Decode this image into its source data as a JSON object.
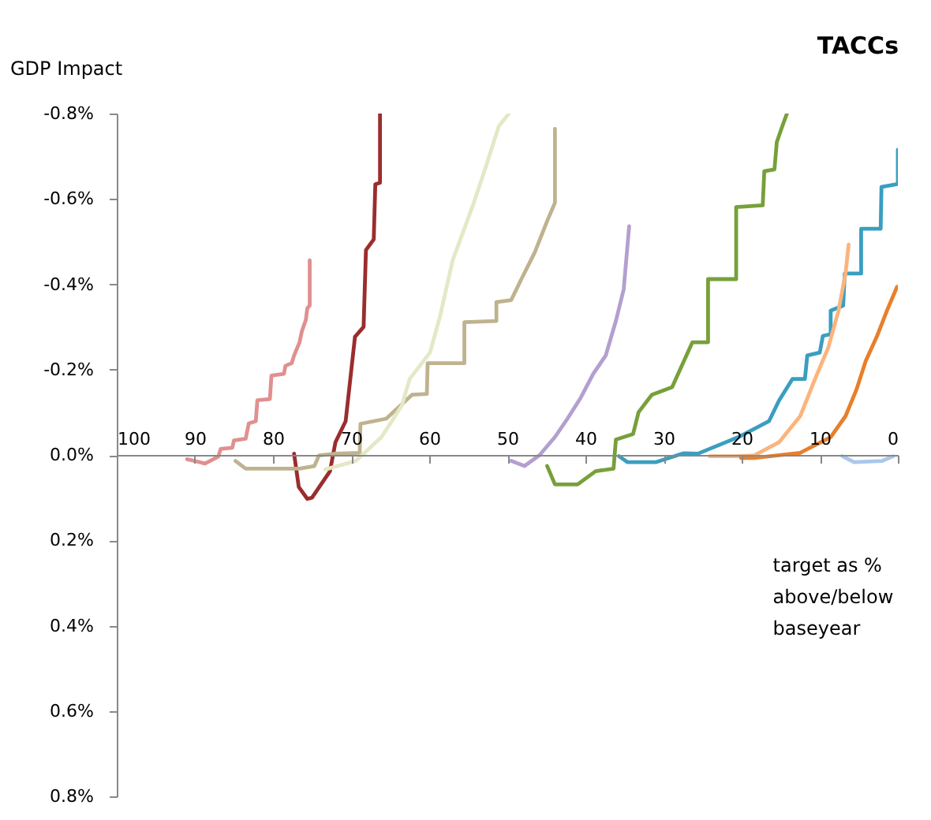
{
  "chart_data": {
    "type": "line",
    "title": "TACCs",
    "ylabel": "GDP Impact",
    "xlim": [
      100,
      0
    ],
    "xticks": [
      100,
      90,
      80,
      70,
      60,
      50,
      40,
      30,
      20,
      10,
      0
    ],
    "ylim": [
      0.8,
      -0.8
    ],
    "yticks": [
      {
        "value": -0.8,
        "label": "-0.8%"
      },
      {
        "value": -0.6,
        "label": "-0.6%"
      },
      {
        "value": -0.4,
        "label": "-0.4%"
      },
      {
        "value": -0.2,
        "label": "-0.2%"
      },
      {
        "value": 0,
        "label": "0.0%"
      },
      {
        "value": 0.2,
        "label": "0.2%"
      },
      {
        "value": 0.4,
        "label": "0.4%"
      },
      {
        "value": 0.6,
        "label": "0.6%"
      },
      {
        "value": 0.8,
        "label": "0.8%"
      }
    ],
    "grid": false,
    "marker": "none",
    "annotations": [
      "target as % above/below baseyear"
    ],
    "series": [
      {
        "color": "#e0908f",
        "x": [
          91,
          88.7,
          87,
          86.7,
          85.2,
          85,
          83.5,
          83.1,
          82.2,
          82,
          80.4,
          80.2,
          78.6,
          78.4,
          77.6,
          77.3,
          76.6,
          76.3,
          75.8,
          75.6,
          75.3,
          75.3
        ],
        "values": [
          0.01,
          0.02,
          0.004,
          -0.014,
          -0.017,
          -0.034,
          -0.038,
          -0.074,
          -0.079,
          -0.128,
          -0.131,
          -0.186,
          -0.19,
          -0.209,
          -0.215,
          -0.233,
          -0.264,
          -0.29,
          -0.316,
          -0.344,
          -0.35,
          -0.456
        ]
      },
      {
        "color": "#9b2d2d",
        "x": [
          77.3,
          76.7,
          75.6,
          75,
          72.7,
          72,
          70.7,
          69.5,
          68.4,
          68.1,
          67.1,
          66.9,
          66.3,
          66.3
        ],
        "values": [
          -0.003,
          0.075,
          0.103,
          0.1,
          0.038,
          -0.03,
          -0.079,
          -0.277,
          -0.3,
          -0.48,
          -0.505,
          -0.634,
          -0.638,
          -0.8
        ]
      },
      {
        "color": "#bfb38f",
        "x": [
          84.8,
          83.5,
          76.6,
          74.7,
          74.1,
          72,
          68.9,
          68.8,
          65.5,
          62.2,
          60.3,
          60.2,
          55.5,
          55.5,
          51.4,
          51.4,
          49.5,
          48.2,
          46.5,
          44.9,
          43.9,
          43.9
        ],
        "values": [
          0.014,
          0.032,
          0.032,
          0.026,
          0.001,
          -0.003,
          -0.005,
          -0.073,
          -0.085,
          -0.141,
          -0.143,
          -0.215,
          -0.215,
          -0.311,
          -0.314,
          -0.358,
          -0.363,
          -0.412,
          -0.474,
          -0.548,
          -0.591,
          -0.764
        ]
      },
      {
        "color": "#e3e8c6",
        "x": [
          73.3,
          69.4,
          66.1,
          63.5,
          62.5,
          59.9,
          58.6,
          57,
          54.4,
          52.7,
          51.1,
          49.8
        ],
        "values": [
          0.034,
          0.014,
          -0.042,
          -0.116,
          -0.178,
          -0.24,
          -0.326,
          -0.456,
          -0.585,
          -0.678,
          -0.77,
          -0.8
        ]
      },
      {
        "color": "#b39fd0",
        "x": [
          49.5,
          47.8,
          45.9,
          43.9,
          42.3,
          40.6,
          39,
          37.4,
          36.1,
          35.1,
          34.4
        ],
        "values": [
          0.014,
          0.026,
          0.001,
          -0.042,
          -0.085,
          -0.134,
          -0.19,
          -0.233,
          -0.314,
          -0.388,
          -0.536
        ]
      },
      {
        "color": "#77a03a",
        "x": [
          44.9,
          43.9,
          41,
          38.7,
          36.4,
          36.1,
          33.9,
          33.2,
          31.5,
          28.9,
          26.3,
          24.3,
          24.3,
          20.7,
          20.7,
          17.3,
          17.1,
          15.8,
          15.5,
          14.8,
          14.2
        ],
        "values": [
          0.026,
          0.069,
          0.069,
          0.038,
          0.032,
          -0.036,
          -0.049,
          -0.1,
          -0.141,
          -0.159,
          -0.264,
          -0.264,
          -0.412,
          -0.412,
          -0.581,
          -0.585,
          -0.665,
          -0.669,
          -0.733,
          -0.77,
          -0.8
        ]
      },
      {
        "color": "#3a9ec0",
        "x": [
          35.7,
          34.6,
          31,
          27.4,
          25.6,
          20.4,
          16.5,
          15.2,
          13.5,
          11.9,
          11.6,
          10,
          9.6,
          8.6,
          8.6,
          7,
          6.8,
          4.7,
          4.7,
          2.2,
          2.1,
          0,
          0
        ],
        "values": [
          0.003,
          0.017,
          0.017,
          -0.004,
          -0.003,
          -0.042,
          -0.079,
          -0.128,
          -0.178,
          -0.178,
          -0.233,
          -0.24,
          -0.279,
          -0.283,
          -0.338,
          -0.35,
          -0.425,
          -0.425,
          -0.53,
          -0.53,
          -0.628,
          -0.635,
          -0.715
        ]
      },
      {
        "color": "#fbb47c",
        "x": [
          24.1,
          20.8,
          18.4,
          15.2,
          12.5,
          10.6,
          8.9,
          7.6,
          6.7,
          6.3
        ],
        "values": [
          0.003,
          0.003,
          0.001,
          -0.03,
          -0.091,
          -0.178,
          -0.252,
          -0.338,
          -0.425,
          -0.493
        ]
      },
      {
        "color": "#e97f2a",
        "x": [
          20.1,
          18.4,
          12.5,
          8.6,
          6.7,
          5.3,
          4.1,
          2.7,
          1.4,
          0.1
        ],
        "values": [
          0.007,
          0.007,
          -0.005,
          -0.042,
          -0.091,
          -0.153,
          -0.221,
          -0.277,
          -0.338,
          -0.394
        ]
      },
      {
        "color": "#a9c8ec",
        "x": [
          7.1,
          5.6,
          2,
          0.6
        ],
        "values": [
          0.003,
          0.017,
          0.014,
          0.003
        ]
      }
    ]
  }
}
